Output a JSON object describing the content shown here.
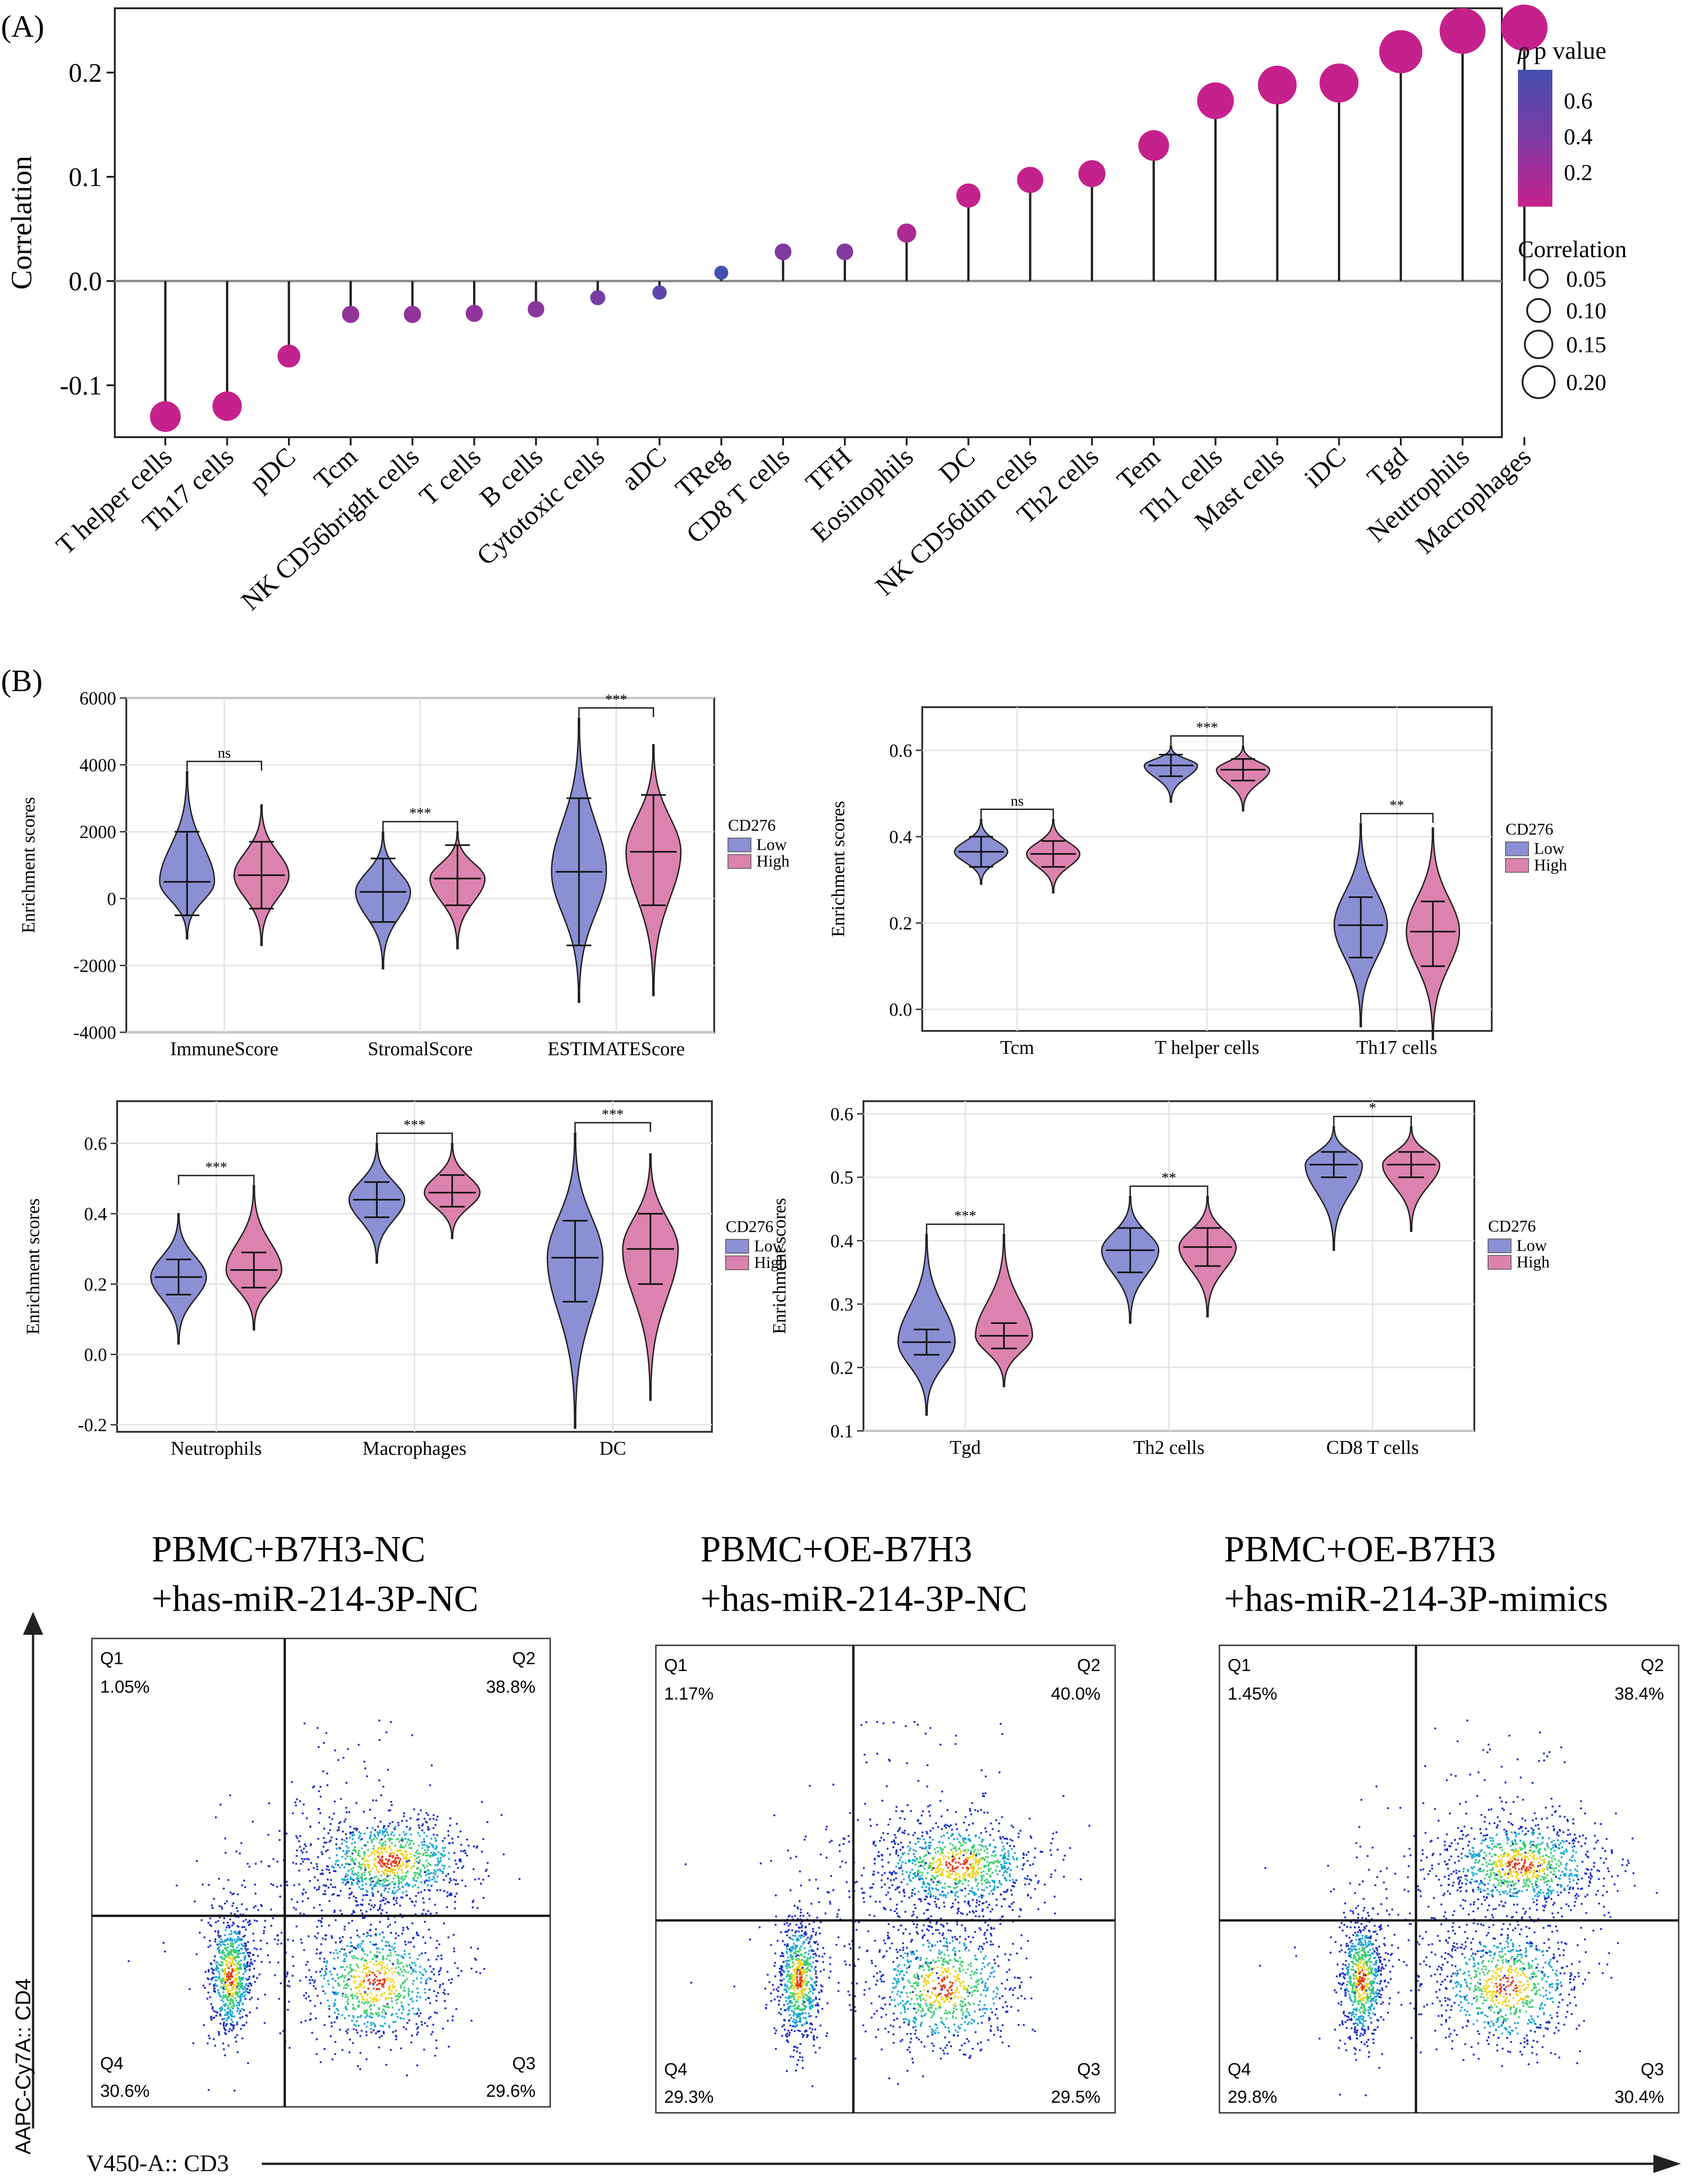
{
  "panel_labels": {
    "a": "(A)",
    "b": "(B)"
  },
  "chart_data": [
    {
      "type": "lollipop",
      "title": "",
      "xlabel": "",
      "ylabel": "Correlation",
      "ylim": [
        -0.15,
        0.26
      ],
      "yticks": [
        -0.1,
        0.0,
        0.1,
        0.2
      ],
      "ytick_labels": [
        "-0.1",
        "0.0",
        "0.1",
        "0.2"
      ],
      "categories": [
        "T helper cells",
        "Th17 cells",
        "pDC",
        "Tcm",
        "NK CD56bright cells",
        "T cells",
        "B cells",
        "Cytotoxic cells",
        "aDC",
        "TReg",
        "CD8 T cells",
        "TFH",
        "Eosinophils",
        "DC",
        "NK CD56dim cells",
        "Th2 cells",
        "Tem",
        "Th1 cells",
        "Mast cells",
        "iDC",
        "Tgd",
        "Neutrophils",
        "Macrophages"
      ],
      "values": [
        -0.13,
        -0.12,
        -0.072,
        -0.032,
        -0.032,
        -0.031,
        -0.027,
        -0.016,
        -0.011,
        0.008,
        0.028,
        0.028,
        0.046,
        0.082,
        0.097,
        0.103,
        0.13,
        0.173,
        0.188,
        0.19,
        0.22,
        0.24,
        0.243
      ],
      "pvalues": [
        0.001,
        0.001,
        0.02,
        0.3,
        0.3,
        0.3,
        0.35,
        0.45,
        0.6,
        0.75,
        0.4,
        0.4,
        0.15,
        0.01,
        0.01,
        0.01,
        0.001,
        0.001,
        0.001,
        0.001,
        0.001,
        0.001,
        0.001
      ],
      "color_legend": {
        "title": "p value",
        "ticks": [
          "0.6",
          "0.4",
          "0.2"
        ],
        "low_color": "#c5218c",
        "high_color": "#4450b0"
      },
      "size_legend": {
        "title": "Correlation",
        "entries": [
          "0.05",
          "0.10",
          "0.15",
          "0.20"
        ]
      }
    },
    {
      "type": "violin",
      "ylabel": "Enrichment scores",
      "ylim": [
        -4000,
        6000
      ],
      "yticks": [
        -4000,
        -2000,
        0,
        2000,
        4000,
        6000
      ],
      "ytick_labels": [
        "-4000",
        "-2000",
        "0",
        "2000",
        "4000",
        "6000"
      ],
      "categories": [
        "ImmuneScore",
        "StromalScore",
        "ESTIMATEScore"
      ],
      "significance": [
        "ns",
        "***",
        "***"
      ],
      "legend": {
        "title": "CD276",
        "entries": [
          "Low",
          "High"
        ],
        "colors": [
          "#8b8fd4",
          "#dc82ae"
        ]
      },
      "series": [
        {
          "name": "Low",
          "median": [
            500,
            200,
            800
          ],
          "q1": [
            -500,
            -700,
            -1400
          ],
          "q3": [
            2000,
            1200,
            3000
          ],
          "min": [
            -1200,
            -2100,
            -3100
          ],
          "max": [
            3800,
            2000,
            5400
          ]
        },
        {
          "name": "High",
          "median": [
            700,
            600,
            1400
          ],
          "q1": [
            -300,
            -200,
            -200
          ],
          "q3": [
            1700,
            1600,
            3100
          ],
          "min": [
            -1400,
            -1500,
            -2900
          ],
          "max": [
            2800,
            2000,
            4600
          ]
        }
      ]
    },
    {
      "type": "violin",
      "ylabel": "Enrichment scores",
      "ylim": [
        -0.05,
        0.7
      ],
      "yticks": [
        0.0,
        0.2,
        0.4,
        0.6
      ],
      "ytick_labels": [
        "0.0",
        "0.2",
        "0.4",
        "0.6"
      ],
      "categories": [
        "Tcm",
        "T helper cells",
        "Th17 cells"
      ],
      "significance": [
        "ns",
        "***",
        "**"
      ],
      "legend": {
        "title": "CD276",
        "entries": [
          "Low",
          "High"
        ],
        "colors": [
          "#8b8fd4",
          "#dc82ae"
        ]
      },
      "series": [
        {
          "name": "Low",
          "median": [
            0.365,
            0.565,
            0.195
          ],
          "q1": [
            0.33,
            0.54,
            0.12
          ],
          "q3": [
            0.4,
            0.59,
            0.26
          ],
          "min": [
            0.29,
            0.48,
            -0.04
          ],
          "max": [
            0.44,
            0.61,
            0.43
          ]
        },
        {
          "name": "High",
          "median": [
            0.36,
            0.555,
            0.18
          ],
          "q1": [
            0.33,
            0.53,
            0.1
          ],
          "q3": [
            0.39,
            0.58,
            0.25
          ],
          "min": [
            0.27,
            0.46,
            -0.07
          ],
          "max": [
            0.44,
            0.61,
            0.42
          ]
        }
      ]
    },
    {
      "type": "violin",
      "ylabel": "Enrichment scores",
      "ylim": [
        -0.22,
        0.72
      ],
      "yticks": [
        -0.2,
        0.0,
        0.2,
        0.4,
        0.6
      ],
      "ytick_labels": [
        "-0.2",
        "0.0",
        "0.2",
        "0.4",
        "0.6"
      ],
      "categories": [
        "Neutrophils",
        "Macrophages",
        "DC"
      ],
      "significance": [
        "***",
        "***",
        "***"
      ],
      "legend": {
        "title": "CD276",
        "entries": [
          "Low",
          "High"
        ],
        "colors": [
          "#8b8fd4",
          "#dc82ae"
        ]
      },
      "series": [
        {
          "name": "Low",
          "median": [
            0.22,
            0.44,
            0.275
          ],
          "q1": [
            0.17,
            0.39,
            0.15
          ],
          "q3": [
            0.27,
            0.49,
            0.38
          ],
          "min": [
            0.03,
            0.26,
            -0.21
          ],
          "max": [
            0.4,
            0.6,
            0.63
          ]
        },
        {
          "name": "High",
          "median": [
            0.24,
            0.46,
            0.3
          ],
          "q1": [
            0.19,
            0.42,
            0.2
          ],
          "q3": [
            0.29,
            0.51,
            0.4
          ],
          "min": [
            0.07,
            0.33,
            -0.13
          ],
          "max": [
            0.48,
            0.6,
            0.57
          ]
        }
      ]
    },
    {
      "type": "violin",
      "ylabel": "Enrichment scores",
      "ylim": [
        0.1,
        0.62
      ],
      "yticks": [
        0.1,
        0.2,
        0.3,
        0.4,
        0.5,
        0.6
      ],
      "ytick_labels": [
        "0.1",
        "0.2",
        "0.3",
        "0.4",
        "0.5",
        "0.6"
      ],
      "categories": [
        "Tgd",
        "Th2 cells",
        "CD8 T cells"
      ],
      "significance": [
        "***",
        "**",
        "*"
      ],
      "legend": {
        "title": "CD276",
        "entries": [
          "Low",
          "High"
        ],
        "colors": [
          "#8b8fd4",
          "#dc82ae"
        ]
      },
      "series": [
        {
          "name": "Low",
          "median": [
            0.24,
            0.385,
            0.52
          ],
          "q1": [
            0.22,
            0.35,
            0.5
          ],
          "q3": [
            0.26,
            0.42,
            0.54
          ],
          "min": [
            0.125,
            0.27,
            0.385
          ],
          "max": [
            0.41,
            0.47,
            0.58
          ]
        },
        {
          "name": "High",
          "median": [
            0.25,
            0.39,
            0.52
          ],
          "q1": [
            0.23,
            0.36,
            0.5
          ],
          "q3": [
            0.27,
            0.42,
            0.54
          ],
          "min": [
            0.17,
            0.28,
            0.415
          ],
          "max": [
            0.41,
            0.47,
            0.58
          ]
        }
      ]
    }
  ],
  "flow": {
    "xlabel": "V450-A:: CD3",
    "ylabel": "AAPC-Cy7A:: CD4",
    "panels": [
      {
        "title_line1": "PBMC+B7H3-NC",
        "title_line2": "+has-miR-214-3P-NC",
        "q1_label": "Q1",
        "q1": "1.05%",
        "q2_label": "Q2",
        "q2": "38.8%",
        "q3_label": "Q3",
        "q3": "29.6%",
        "q4_label": "Q4",
        "q4": "30.6%"
      },
      {
        "title_line1": "PBMC+OE-B7H3",
        "title_line2": "+has-miR-214-3P-NC",
        "q1_label": "Q1",
        "q1": "1.17%",
        "q2_label": "Q2",
        "q2": "40.0%",
        "q3_label": "Q3",
        "q3": "29.5%",
        "q4_label": "Q4",
        "q4": "29.3%"
      },
      {
        "title_line1": "PBMC+OE-B7H3",
        "title_line2": "+has-miR-214-3P-mimics",
        "q1_label": "Q1",
        "q1": "1.45%",
        "q2_label": "Q2",
        "q2": "38.4%",
        "q3_label": "Q3",
        "q3": "30.4%",
        "q4_label": "Q4",
        "q4": "29.8%"
      }
    ]
  }
}
